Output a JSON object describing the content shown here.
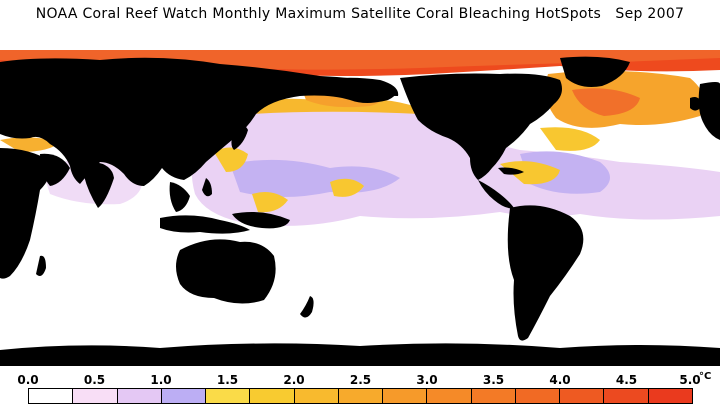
{
  "title": "NOAA Coral Reef Watch Monthly Maximum Satellite Coral Bleaching HotSpots   Sep 2007",
  "colors": {
    "ocean": "#ffffff",
    "land": "#000000",
    "pale_pink": "#f6dff4",
    "lavender": "#dcc6f2",
    "periwinkle": "#b6aaf2",
    "yellow": "#f7cf2c",
    "orange": "#f59a2c",
    "red_orange": "#f05a20",
    "red": "#e8321a"
  },
  "legend": {
    "tick_labels": [
      "0.0",
      "0.5",
      "1.0",
      "1.5",
      "2.0",
      "2.5",
      "3.0",
      "3.5",
      "4.0",
      "4.5",
      "5.0"
    ],
    "unit": "°C",
    "swatch_colors": [
      "#ffffff",
      "#f8def6",
      "#e4c8f4",
      "#bcaef4",
      "#fadb48",
      "#f8cb30",
      "#f8ba2e",
      "#f7aa2c",
      "#f69a2a",
      "#f58a28",
      "#f37a26",
      "#f16a24",
      "#ee5a22",
      "#ec4a20",
      "#ea3a1e"
    ]
  }
}
